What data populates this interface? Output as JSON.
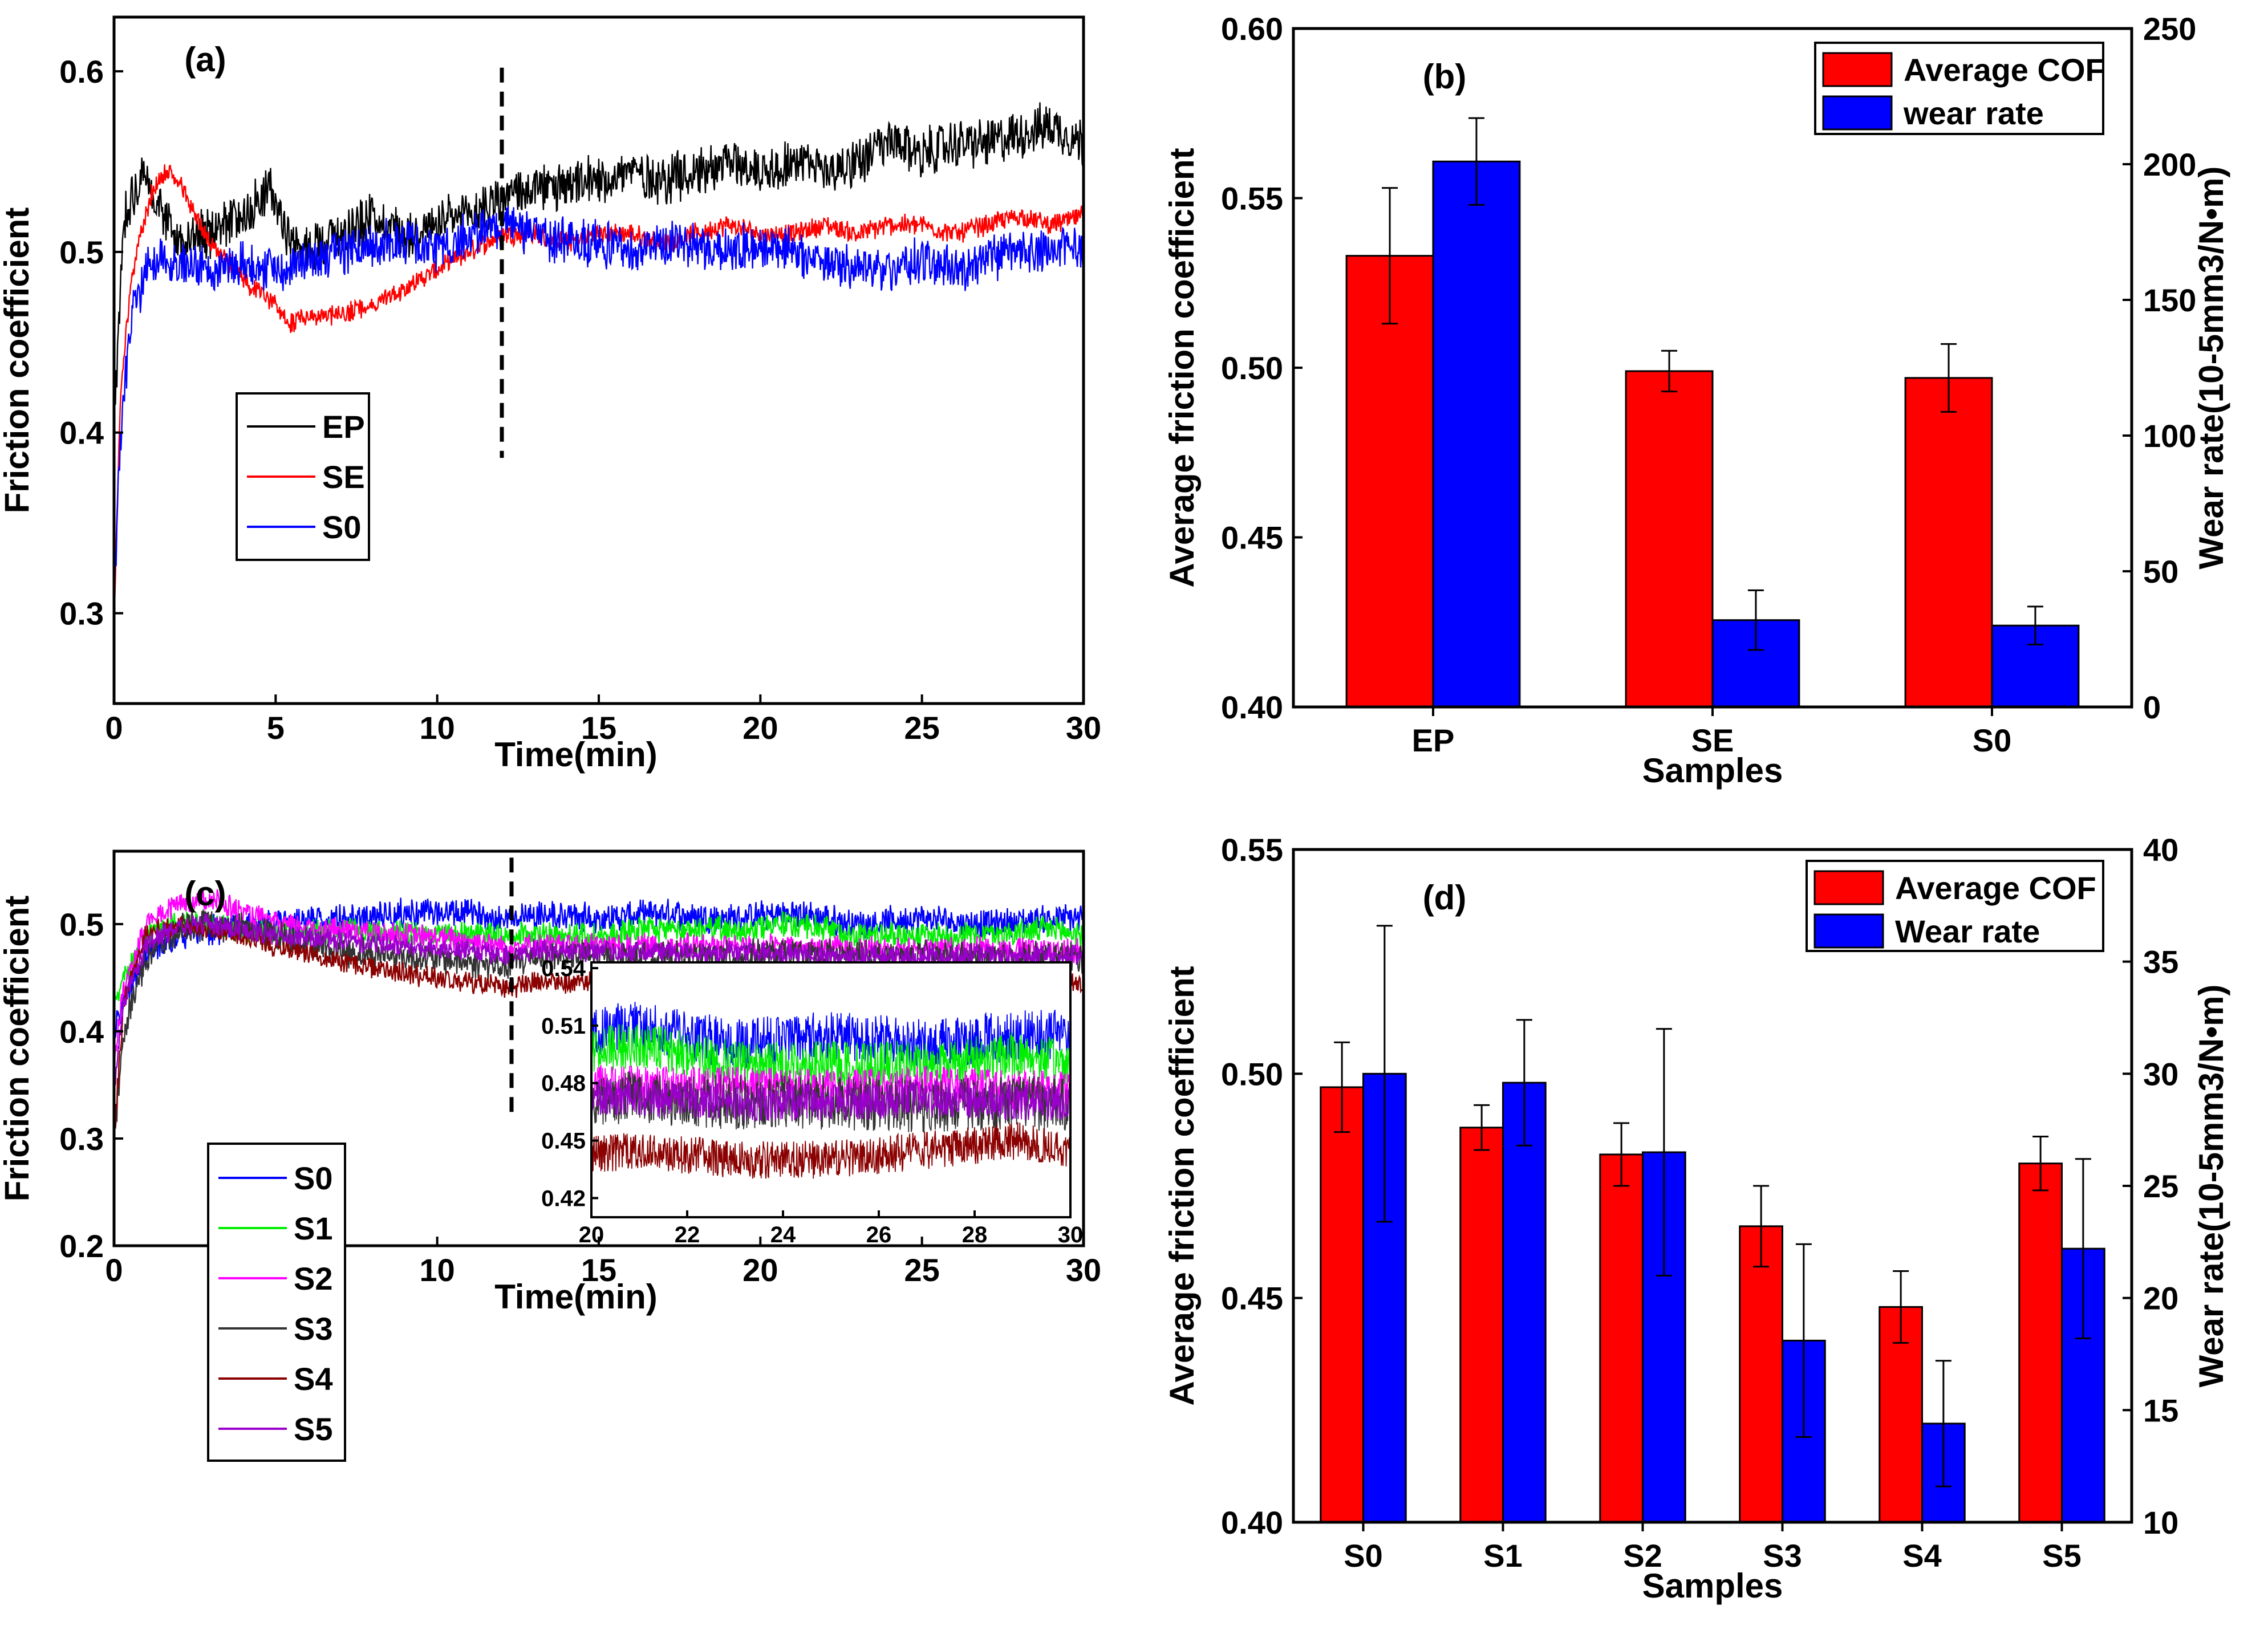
{
  "chart_data": [
    {
      "id": "a",
      "type": "line",
      "panel_label": "(a)",
      "xlabel": "Time(min)",
      "ylabel": "Friction coefficient",
      "xlim": [
        0,
        30
      ],
      "ylim": [
        0.25,
        0.63
      ],
      "xticks": [
        0,
        5,
        10,
        15,
        20,
        25,
        30
      ],
      "yticks": [
        0.3,
        0.4,
        0.5,
        0.6
      ],
      "ytick_labels": [
        "0.3",
        "0.4",
        "0.5",
        "0.6"
      ],
      "vline": {
        "x": 12,
        "y": [
          0.386,
          0.602
        ]
      },
      "series": [
        {
          "name": "EP",
          "color": "#000000",
          "x": [
            0,
            0.3,
            0.8,
            1.3,
            2,
            3,
            4,
            4.8,
            5.6,
            7,
            8,
            9,
            10,
            11,
            12,
            13,
            14,
            15,
            16,
            17,
            18,
            19,
            20,
            21,
            22,
            23,
            24,
            25,
            26,
            27,
            28,
            29,
            30
          ],
          "y": [
            0.4,
            0.52,
            0.54,
            0.53,
            0.505,
            0.51,
            0.52,
            0.535,
            0.5,
            0.51,
            0.52,
            0.51,
            0.515,
            0.52,
            0.53,
            0.535,
            0.535,
            0.54,
            0.545,
            0.54,
            0.545,
            0.55,
            0.545,
            0.55,
            0.545,
            0.55,
            0.56,
            0.555,
            0.56,
            0.56,
            0.565,
            0.57,
            0.56
          ],
          "noise": 0.012
        },
        {
          "name": "SE",
          "color": "#ff0000",
          "x": [
            0,
            0.2,
            0.5,
            0.8,
            1.2,
            1.6,
            2,
            2.5,
            3,
            3.5,
            4,
            5,
            5.5,
            6,
            7,
            8,
            9,
            10,
            11,
            12,
            13,
            14,
            15,
            16,
            17,
            18,
            19,
            20,
            21,
            22,
            23,
            24,
            25,
            26,
            27,
            28,
            29,
            30
          ],
          "y": [
            0.3,
            0.42,
            0.48,
            0.51,
            0.535,
            0.545,
            0.54,
            0.52,
            0.505,
            0.495,
            0.485,
            0.47,
            0.46,
            0.465,
            0.465,
            0.47,
            0.48,
            0.49,
            0.5,
            0.51,
            0.51,
            0.505,
            0.51,
            0.51,
            0.505,
            0.51,
            0.515,
            0.51,
            0.51,
            0.515,
            0.51,
            0.515,
            0.515,
            0.51,
            0.515,
            0.52,
            0.515,
            0.52
          ],
          "noise": 0.005
        },
        {
          "name": "S0",
          "color": "#0000ff",
          "x": [
            0,
            0.2,
            0.5,
            1,
            1.5,
            2,
            3,
            4,
            5,
            6,
            7,
            8,
            9,
            10,
            11,
            12,
            13,
            14,
            15,
            16,
            17,
            18,
            19,
            20,
            21,
            22,
            23,
            24,
            25,
            26,
            27,
            28,
            29,
            30
          ],
          "y": [
            0.3,
            0.4,
            0.46,
            0.49,
            0.5,
            0.495,
            0.49,
            0.495,
            0.49,
            0.495,
            0.5,
            0.505,
            0.505,
            0.5,
            0.51,
            0.515,
            0.51,
            0.505,
            0.505,
            0.5,
            0.505,
            0.505,
            0.5,
            0.505,
            0.5,
            0.495,
            0.49,
            0.49,
            0.495,
            0.49,
            0.495,
            0.5,
            0.5,
            0.505
          ],
          "noise": 0.011
        }
      ],
      "legend": [
        "EP",
        "SE",
        "S0"
      ]
    },
    {
      "id": "b",
      "type": "bar",
      "panel_label": "(b)",
      "xlabel": "Samples",
      "ylabel": "Average friction coefficient",
      "ylabel_right": "Wear rate(10-5mm3/N•m)",
      "categories": [
        "EP",
        "SE",
        "S0"
      ],
      "ylim": [
        0.4,
        0.6
      ],
      "yticks": [
        0.4,
        0.45,
        0.5,
        0.55,
        0.6
      ],
      "ytick_labels": [
        "0.40",
        "0.45",
        "0.50",
        "0.55",
        "0.60"
      ],
      "ylim_right": [
        0,
        250
      ],
      "yticks_right": [
        0,
        50,
        100,
        150,
        200,
        250
      ],
      "ytick_labels_right": [
        "0",
        "50",
        "100",
        "150",
        "200",
        "250"
      ],
      "series": [
        {
          "name": "Average COF",
          "color": "#ff0000",
          "axis": "left",
          "values": [
            0.533,
            0.499,
            0.497
          ],
          "err": [
            0.02,
            0.006,
            0.01
          ]
        },
        {
          "name": "wear rate",
          "color": "#0000ff",
          "axis": "right",
          "values": [
            201,
            32,
            30
          ],
          "err": [
            16,
            11,
            7
          ]
        }
      ]
    },
    {
      "id": "c",
      "type": "line",
      "panel_label": "(c)",
      "xlabel": "Time(min)",
      "ylabel": "Friction coefficient",
      "xlim": [
        0,
        30
      ],
      "ylim": [
        0.2,
        0.568
      ],
      "xticks": [
        0,
        5,
        10,
        15,
        20,
        25,
        30
      ],
      "yticks": [
        0.2,
        0.3,
        0.4,
        0.5
      ],
      "ytick_labels": [
        "0.2",
        "0.3",
        "0.4",
        "0.5"
      ],
      "vline": {
        "x": 12.3,
        "y": [
          0.32,
          0.562
        ]
      },
      "series": [
        {
          "name": "S0",
          "color": "#0000ff",
          "x": [
            0,
            0.3,
            1,
            2,
            3,
            5,
            7,
            9,
            11,
            12,
            13,
            15,
            17,
            19,
            21,
            23,
            25,
            27,
            29,
            30
          ],
          "y": [
            0.4,
            0.43,
            0.47,
            0.49,
            0.495,
            0.5,
            0.505,
            0.51,
            0.51,
            0.505,
            0.51,
            0.505,
            0.51,
            0.505,
            0.51,
            0.5,
            0.505,
            0.5,
            0.505,
            0.505
          ],
          "noise": 0.012
        },
        {
          "name": "S1",
          "color": "#00ee00",
          "x": [
            0,
            0.3,
            1,
            2,
            3,
            5,
            7,
            9,
            11,
            12,
            13,
            15,
            17,
            19,
            21,
            23,
            25,
            27,
            29,
            30
          ],
          "y": [
            0.42,
            0.45,
            0.49,
            0.5,
            0.5,
            0.49,
            0.495,
            0.49,
            0.49,
            0.49,
            0.49,
            0.49,
            0.495,
            0.495,
            0.5,
            0.49,
            0.49,
            0.49,
            0.495,
            0.49
          ],
          "noise": 0.011
        },
        {
          "name": "S2",
          "color": "#ff00ff",
          "x": [
            0,
            0.3,
            1,
            2,
            3,
            4,
            5,
            7,
            9,
            11,
            12,
            13,
            15,
            17,
            19,
            21,
            23,
            25,
            27,
            29,
            30
          ],
          "y": [
            0.38,
            0.44,
            0.5,
            0.52,
            0.525,
            0.51,
            0.5,
            0.495,
            0.49,
            0.485,
            0.48,
            0.48,
            0.48,
            0.48,
            0.48,
            0.478,
            0.478,
            0.476,
            0.478,
            0.476,
            0.475
          ],
          "noise": 0.01
        },
        {
          "name": "S3",
          "color": "#333333",
          "x": [
            0,
            0.3,
            1,
            2,
            3,
            5,
            7,
            9,
            11,
            12,
            13,
            15,
            17,
            19,
            21,
            23,
            25,
            27,
            29,
            30
          ],
          "y": [
            0.3,
            0.4,
            0.47,
            0.495,
            0.5,
            0.49,
            0.475,
            0.47,
            0.465,
            0.46,
            0.47,
            0.47,
            0.468,
            0.47,
            0.472,
            0.47,
            0.47,
            0.468,
            0.47,
            0.468
          ],
          "noise": 0.013
        },
        {
          "name": "S4",
          "color": "#8b0000",
          "x": [
            0,
            0.3,
            1,
            2,
            3,
            4,
            5,
            7,
            9,
            11,
            12,
            13,
            15,
            17,
            19,
            21,
            23,
            25,
            27,
            29,
            30
          ],
          "y": [
            0.3,
            0.43,
            0.49,
            0.5,
            0.495,
            0.49,
            0.48,
            0.465,
            0.455,
            0.445,
            0.44,
            0.445,
            0.445,
            0.44,
            0.44,
            0.445,
            0.44,
            0.44,
            0.445,
            0.45,
            0.445
          ],
          "noise": 0.009
        },
        {
          "name": "S5",
          "color": "#9900cc",
          "x": [
            0,
            0.3,
            1,
            2,
            3,
            5,
            7,
            9,
            11,
            12,
            13,
            15,
            17,
            19,
            21,
            23,
            25,
            27,
            29,
            30
          ],
          "y": [
            0.35,
            0.43,
            0.48,
            0.5,
            0.5,
            0.49,
            0.485,
            0.48,
            0.475,
            0.47,
            0.475,
            0.475,
            0.473,
            0.475,
            0.472,
            0.47,
            0.47,
            0.472,
            0.47,
            0.47
          ],
          "noise": 0.009
        }
      ],
      "legend": [
        "S0",
        "S1",
        "S2",
        "S3",
        "S4",
        "S5"
      ],
      "inset": {
        "xlim": [
          20,
          30
        ],
        "ylim": [
          0.41,
          0.543
        ],
        "xticks": [
          20,
          22,
          24,
          26,
          28,
          30
        ],
        "yticks": [
          0.42,
          0.45,
          0.48,
          0.51,
          0.54
        ],
        "ytick_labels": [
          "0.42",
          "0.45",
          "0.48",
          "0.51",
          "0.54"
        ]
      }
    },
    {
      "id": "d",
      "type": "bar",
      "panel_label": "(d)",
      "xlabel": "Samples",
      "ylabel": "Average friction coefficient",
      "ylabel_right": "Wear rate(10-5mm3/N•m)",
      "categories": [
        "S0",
        "S1",
        "S2",
        "S3",
        "S4",
        "S5"
      ],
      "ylim": [
        0.4,
        0.55
      ],
      "yticks": [
        0.4,
        0.45,
        0.5,
        0.55
      ],
      "ytick_labels": [
        "0.40",
        "0.45",
        "0.50",
        "0.55"
      ],
      "ylim_right": [
        10,
        40
      ],
      "yticks_right": [
        10,
        15,
        20,
        25,
        30,
        35,
        40
      ],
      "ytick_labels_right": [
        "10",
        "15",
        "20",
        "25",
        "30",
        "35",
        "40"
      ],
      "series": [
        {
          "name": "Average COF",
          "color": "#ff0000",
          "axis": "left",
          "values": [
            0.497,
            0.488,
            0.482,
            0.466,
            0.448,
            0.48
          ],
          "err": [
            0.01,
            0.005,
            0.007,
            0.009,
            0.008,
            0.006
          ]
        },
        {
          "name": "Wear rate",
          "color": "#0000ff",
          "axis": "right",
          "values": [
            30.0,
            29.6,
            26.5,
            18.1,
            14.4,
            22.2
          ],
          "err": [
            6.6,
            2.8,
            5.5,
            4.3,
            2.8,
            4.0
          ]
        }
      ]
    }
  ]
}
